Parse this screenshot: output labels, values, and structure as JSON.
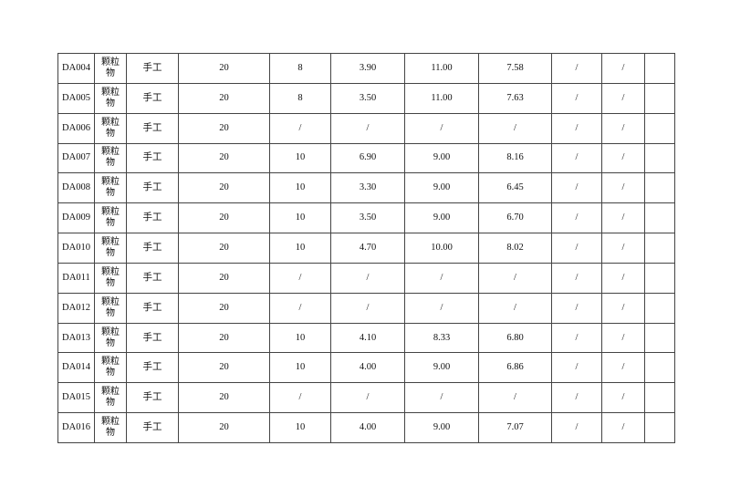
{
  "table": {
    "rows": [
      [
        "DA004",
        "颗粒\n物",
        "手工",
        "20",
        "8",
        "3.90",
        "11.00",
        "7.58",
        "/",
        "/",
        ""
      ],
      [
        "DA005",
        "颗粒\n物",
        "手工",
        "20",
        "8",
        "3.50",
        "11.00",
        "7.63",
        "/",
        "/",
        ""
      ],
      [
        "DA006",
        "颗粒\n物",
        "手工",
        "20",
        "/",
        "/",
        "/",
        "/",
        "/",
        "/",
        ""
      ],
      [
        "DA007",
        "颗粒\n物",
        "手工",
        "20",
        "10",
        "6.90",
        "9.00",
        "8.16",
        "/",
        "/",
        ""
      ],
      [
        "DA008",
        "颗粒\n物",
        "手工",
        "20",
        "10",
        "3.30",
        "9.00",
        "6.45",
        "/",
        "/",
        ""
      ],
      [
        "DA009",
        "颗粒\n物",
        "手工",
        "20",
        "10",
        "3.50",
        "9.00",
        "6.70",
        "/",
        "/",
        ""
      ],
      [
        "DA010",
        "颗粒\n物",
        "手工",
        "20",
        "10",
        "4.70",
        "10.00",
        "8.02",
        "/",
        "/",
        ""
      ],
      [
        "DA011",
        "颗粒\n物",
        "手工",
        "20",
        "/",
        "/",
        "/",
        "/",
        "/",
        "/",
        ""
      ],
      [
        "DA012",
        "颗粒\n物",
        "手工",
        "20",
        "/",
        "/",
        "/",
        "/",
        "/",
        "/",
        ""
      ],
      [
        "DA013",
        "颗粒\n物",
        "手工",
        "20",
        "10",
        "4.10",
        "8.33",
        "6.80",
        "/",
        "/",
        ""
      ],
      [
        "DA014",
        "颗粒\n物",
        "手工",
        "20",
        "10",
        "4.00",
        "9.00",
        "6.86",
        "/",
        "/",
        ""
      ],
      [
        "DA015",
        "颗粒\n物",
        "手工",
        "20",
        "/",
        "/",
        "/",
        "/",
        "/",
        "/",
        ""
      ],
      [
        "DA016",
        "颗粒\n物",
        "手工",
        "20",
        "10",
        "4.00",
        "9.00",
        "7.07",
        "/",
        "/",
        ""
      ]
    ]
  }
}
